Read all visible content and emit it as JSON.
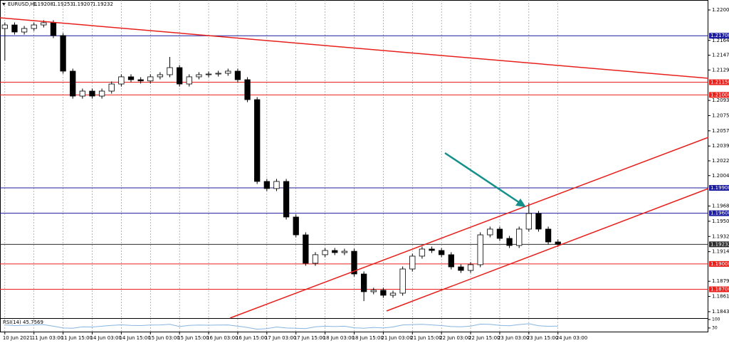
{
  "chart_data": {
    "type": "candlestick",
    "title": "EURUSD,H1",
    "ohlc_header": {
      "open": 1.19208,
      "high": 1.19253,
      "low": 1.19207,
      "close": 1.19232
    },
    "x": [
      0,
      1,
      2,
      3,
      4,
      5,
      6,
      7,
      8,
      9,
      10,
      11,
      12,
      13,
      14,
      15,
      16,
      17,
      18,
      19,
      20,
      21,
      22,
      23,
      24,
      25,
      26,
      27,
      28,
      29,
      30,
      31,
      32,
      33,
      34,
      35,
      36,
      37,
      38,
      39,
      40,
      41,
      42,
      43,
      44,
      45,
      46,
      47,
      48,
      49,
      50,
      51,
      52,
      53,
      54,
      55,
      56,
      57
    ],
    "open": [
      1.21786,
      1.21828,
      1.21744,
      1.21786,
      1.21828,
      1.21854,
      1.21702,
      1.21281,
      1.20986,
      1.21045,
      1.20986,
      1.21045,
      1.21129,
      1.21214,
      1.2118,
      1.21165,
      1.21214,
      1.21239,
      1.21323,
      1.21129,
      1.21214,
      1.21239,
      1.21247,
      1.21256,
      1.21281,
      1.2118,
      1.20944,
      1.19976,
      1.19892,
      1.19976,
      1.19555,
      1.19344,
      1.19008,
      1.19109,
      1.19159,
      1.19134,
      1.1915,
      1.18881,
      1.18671,
      1.18688,
      1.18629,
      1.18654,
      1.1894,
      1.19092,
      1.19176,
      1.19159,
      1.19109,
      1.18965,
      1.18923,
      1.18991,
      1.19344,
      1.19412,
      1.19302,
      1.19218,
      1.19412,
      1.19597,
      1.19412,
      1.1926
    ],
    "high": [
      1.21858,
      1.21858,
      1.21816,
      1.21858,
      1.21884,
      1.21884,
      1.21732,
      1.21311,
      1.21075,
      1.21075,
      1.21075,
      1.21159,
      1.21244,
      1.21244,
      1.2121,
      1.21244,
      1.21269,
      1.21449,
      1.21353,
      1.21244,
      1.21269,
      1.21277,
      1.21286,
      1.21311,
      1.21311,
      1.2121,
      1.20974,
      1.20006,
      1.20006,
      1.20006,
      1.19585,
      1.19374,
      1.19139,
      1.19189,
      1.19189,
      1.1918,
      1.1918,
      1.18911,
      1.18718,
      1.18718,
      1.18684,
      1.1897,
      1.19122,
      1.19206,
      1.19206,
      1.19189,
      1.19139,
      1.18995,
      1.19021,
      1.19374,
      1.19442,
      1.19442,
      1.19332,
      1.19442,
      1.1972,
      1.19627,
      1.19442,
      1.1929
    ],
    "low": [
      1.21407,
      1.21714,
      1.21714,
      1.21756,
      1.21798,
      1.21672,
      1.21251,
      1.20956,
      1.20956,
      1.20956,
      1.20956,
      1.21015,
      1.21099,
      1.2115,
      1.21135,
      1.21135,
      1.21184,
      1.21209,
      1.21099,
      1.21099,
      1.21184,
      1.21209,
      1.21217,
      1.21226,
      1.2115,
      1.20914,
      1.19946,
      1.19862,
      1.19862,
      1.19525,
      1.19314,
      1.18978,
      1.18978,
      1.19079,
      1.19104,
      1.19104,
      1.18851,
      1.1856,
      1.18641,
      1.18599,
      1.18599,
      1.18624,
      1.1891,
      1.19062,
      1.19129,
      1.19079,
      1.18935,
      1.18893,
      1.18893,
      1.18961,
      1.19314,
      1.19272,
      1.19188,
      1.19188,
      1.19382,
      1.19382,
      1.1923,
      1.19202
    ],
    "close": [
      1.21828,
      1.21744,
      1.21786,
      1.21828,
      1.21854,
      1.21702,
      1.21281,
      1.20986,
      1.21045,
      1.20986,
      1.21045,
      1.21129,
      1.21214,
      1.2118,
      1.21165,
      1.21214,
      1.21239,
      1.21323,
      1.21129,
      1.21214,
      1.21239,
      1.21247,
      1.21256,
      1.21281,
      1.2118,
      1.20944,
      1.19976,
      1.19892,
      1.19976,
      1.19555,
      1.19344,
      1.19008,
      1.19109,
      1.19159,
      1.19134,
      1.1915,
      1.18881,
      1.18671,
      1.18688,
      1.18629,
      1.18654,
      1.1894,
      1.19092,
      1.19176,
      1.19159,
      1.19109,
      1.18965,
      1.18923,
      1.18991,
      1.19344,
      1.19412,
      1.19302,
      1.19218,
      1.19412,
      1.19597,
      1.19412,
      1.1926,
      1.19232
    ],
    "up_color": "#ffffff",
    "down_color": "#000000",
    "xlim": [
      -0.5,
      72.5
    ],
    "xticks": [
      {
        "value": 0,
        "label": "10 Jun 2021"
      },
      {
        "value": 3,
        "label": "11 Jun 03:00"
      },
      {
        "value": 6,
        "label": "11 Jun 15:00"
      },
      {
        "value": 9,
        "label": "14 Jun 03:00"
      },
      {
        "value": 12,
        "label": "14 Jun 15:00"
      },
      {
        "value": 15,
        "label": "15 Jun 03:00"
      },
      {
        "value": 18,
        "label": "15 Jun 15:00"
      },
      {
        "value": 21,
        "label": "16 Jun 03:00"
      },
      {
        "value": 24,
        "label": "16 Jun 15:00"
      },
      {
        "value": 27,
        "label": "17 Jun 03:00"
      },
      {
        "value": 30,
        "label": "17 Jun 15:00"
      },
      {
        "value": 33,
        "label": "18 Jun 03:00"
      },
      {
        "value": 36,
        "label": "18 Jun 15:00"
      },
      {
        "value": 39,
        "label": "21 Jun 03:00"
      },
      {
        "value": 42,
        "label": "21 Jun 15:00"
      },
      {
        "value": 45,
        "label": "22 Jun 03:00"
      },
      {
        "value": 48,
        "label": "22 Jun 15:00"
      },
      {
        "value": 51,
        "label": "23 Jun 03:00"
      },
      {
        "value": 54,
        "label": "23 Jun 15:00"
      },
      {
        "value": 57,
        "label": "24 Jun 03:00"
      }
    ],
    "ylim": [
      1.18359,
      1.22123
    ],
    "yticks": [
      1.22005,
      1.21645,
      {
        "value": 1.2147,
        "label": "1.21470"
      },
      1.21295,
      1.20935,
      1.20755,
      1.20575,
      1.20395,
      {
        "value": 1.2022,
        "label": "1.20220"
      },
      1.20045,
      1.19685,
      1.19505,
      1.19325,
      1.19145,
      1.18795,
      1.18615,
      1.18435
    ],
    "grid": true,
    "levels": [
      {
        "value": 1.217,
        "label": "1.21700",
        "color": "#1c1c9e"
      },
      {
        "value": 1.2115,
        "label": "1.21150",
        "color": "#e8201c"
      },
      {
        "value": 1.21,
        "label": "1.21000",
        "color": "#e8201c"
      },
      {
        "value": 1.199,
        "label": "1.19900",
        "color": "#1c1c9e"
      },
      {
        "value": 1.196,
        "label": "1.19600",
        "color": "#1c1c9e"
      },
      {
        "value": 1.19232,
        "color": "#2b2b2b"
      },
      {
        "value": 1.19,
        "label": "1.19000",
        "color": "#e8201c"
      },
      {
        "value": 1.187,
        "label": "1.18700",
        "color": "#e8201c"
      }
    ],
    "rsi": {
      "label": "RSI(14)",
      "value": 45.7569,
      "color": "#87b5e0",
      "ylim": [
        0,
        100
      ],
      "yticks": [
        100,
        30
      ],
      "values": [
        55,
        50,
        52,
        55,
        57,
        45,
        30,
        28,
        40,
        38,
        45,
        52,
        56,
        52,
        50,
        54,
        55,
        60,
        42,
        52,
        54,
        53,
        54,
        55,
        45,
        35,
        20,
        25,
        38,
        30,
        28,
        25,
        40,
        45,
        42,
        45,
        32,
        28,
        35,
        30,
        38,
        55,
        58,
        60,
        55,
        50,
        42,
        40,
        46,
        62,
        60,
        52,
        48,
        58,
        65,
        48,
        44,
        45.7569
      ]
    }
  }
}
